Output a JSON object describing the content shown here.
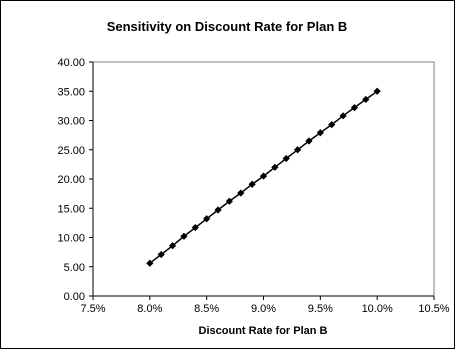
{
  "chart_data": {
    "type": "line",
    "title": "Sensitivity on Discount Rate for Plan B",
    "xlabel": "Discount Rate for Plan B",
    "ylabel": "",
    "xlim": [
      0.075,
      0.105
    ],
    "ylim": [
      0,
      40
    ],
    "x_ticks": [
      "7.5%",
      "8.0%",
      "8.5%",
      "9.0%",
      "9.5%",
      "10.0%",
      "10.5%"
    ],
    "y_ticks": [
      "0.00",
      "5.00",
      "10.00",
      "15.00",
      "20.00",
      "25.00",
      "30.00",
      "35.00",
      "40.00"
    ],
    "grid": false,
    "legend": "none",
    "series": [
      {
        "marker": "diamond",
        "color": "#000000",
        "x": [
          0.08,
          0.081,
          0.082,
          0.083,
          0.084,
          0.085,
          0.086,
          0.087,
          0.088,
          0.089,
          0.09,
          0.091,
          0.092,
          0.093,
          0.094,
          0.095,
          0.096,
          0.097,
          0.098,
          0.099,
          0.1
        ],
        "values": [
          5.6,
          7.1,
          8.6,
          10.2,
          11.7,
          13.2,
          14.7,
          16.2,
          17.6,
          19.1,
          20.5,
          22.0,
          23.5,
          25.0,
          26.5,
          27.9,
          29.3,
          30.8,
          32.2,
          33.6,
          35.0
        ]
      }
    ]
  }
}
